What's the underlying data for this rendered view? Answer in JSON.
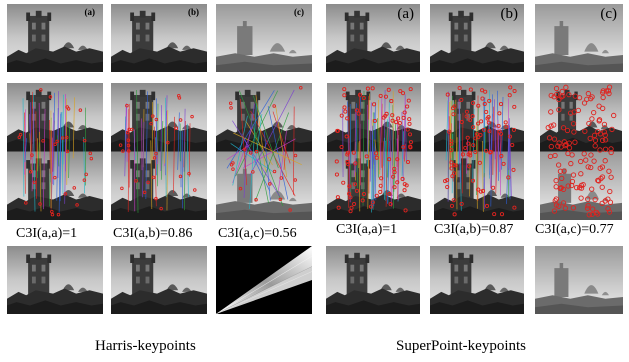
{
  "panel_labels": {
    "harris": [
      "(a)",
      "(b)",
      "(c)"
    ],
    "superpoint": [
      "(a)",
      "(b)",
      "(c)"
    ]
  },
  "scores": {
    "harris": [
      "C3I(a,a)=1",
      "C3I(a,b)=0.86",
      "C3I(a,c)=0.56"
    ],
    "superpoint": [
      "C3I(a,a)=1",
      "C3I(a,b)=0.87",
      "C3I(a,c)=0.77"
    ]
  },
  "captions": {
    "harris": "Harris-keypoints",
    "superpoint": "SuperPoint-keypoints"
  },
  "colors": {
    "keypoint": "#e0231f",
    "sky_light": "#d8d8d8",
    "building": "#3a3a3a"
  }
}
